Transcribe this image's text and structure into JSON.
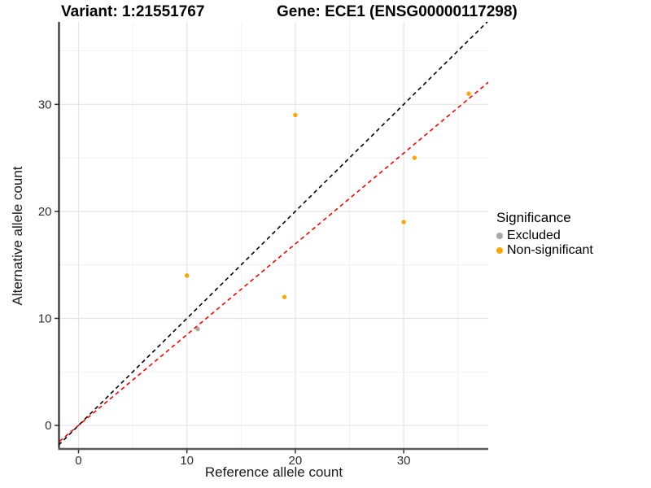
{
  "header": {
    "left_title": "Variant: 1:21551767",
    "right_title": "Gene: ECE1 (ENSG00000117298)"
  },
  "legend": {
    "title": "Significance",
    "items": [
      {
        "label": "Excluded",
        "color": "#A9A9A9"
      },
      {
        "label": "Non-significant",
        "color": "#FFA500"
      }
    ]
  },
  "chart_data": {
    "type": "scatter",
    "title_left": "Variant: 1:21551767",
    "title_right": "Gene: ECE1 (ENSG00000117298)",
    "xlabel": "Reference allele count",
    "ylabel": "Alternative allele count",
    "xlim": [
      -1.8,
      37.8
    ],
    "ylim": [
      -2.2,
      37.7
    ],
    "x_ticks": [
      0,
      10,
      20,
      30
    ],
    "y_ticks": [
      0,
      10,
      20,
      30
    ],
    "x_minor_ticks": [
      5,
      15,
      25,
      35
    ],
    "y_minor_ticks": [
      5,
      15,
      25,
      35
    ],
    "grid": "major+minor",
    "legend_position": "right",
    "series": [
      {
        "name": "Excluded",
        "color": "#A9A9A9",
        "points": [
          [
            11,
            9
          ]
        ]
      },
      {
        "name": "Non-significant",
        "color": "#FFA500",
        "points": [
          [
            10,
            14
          ],
          [
            19,
            12
          ],
          [
            20,
            29
          ],
          [
            30,
            19
          ],
          [
            31,
            25
          ],
          [
            36,
            31
          ]
        ]
      }
    ],
    "lines": [
      {
        "name": "identity-line",
        "color": "#000000",
        "style": "dashed",
        "slope": 1,
        "intercept": 0
      },
      {
        "name": "fit-line",
        "color": "#FF0000",
        "style": "dashed",
        "slope": 0.848,
        "intercept": 0
      }
    ]
  },
  "colors": {
    "grid_major": "#E4E4E4",
    "grid_minor": "#F2F2F2",
    "axis_line_left": "#1a1a1a",
    "axis_line_bottom": "#595959",
    "tick_mark": "#333333",
    "tick_label": "#303030"
  }
}
